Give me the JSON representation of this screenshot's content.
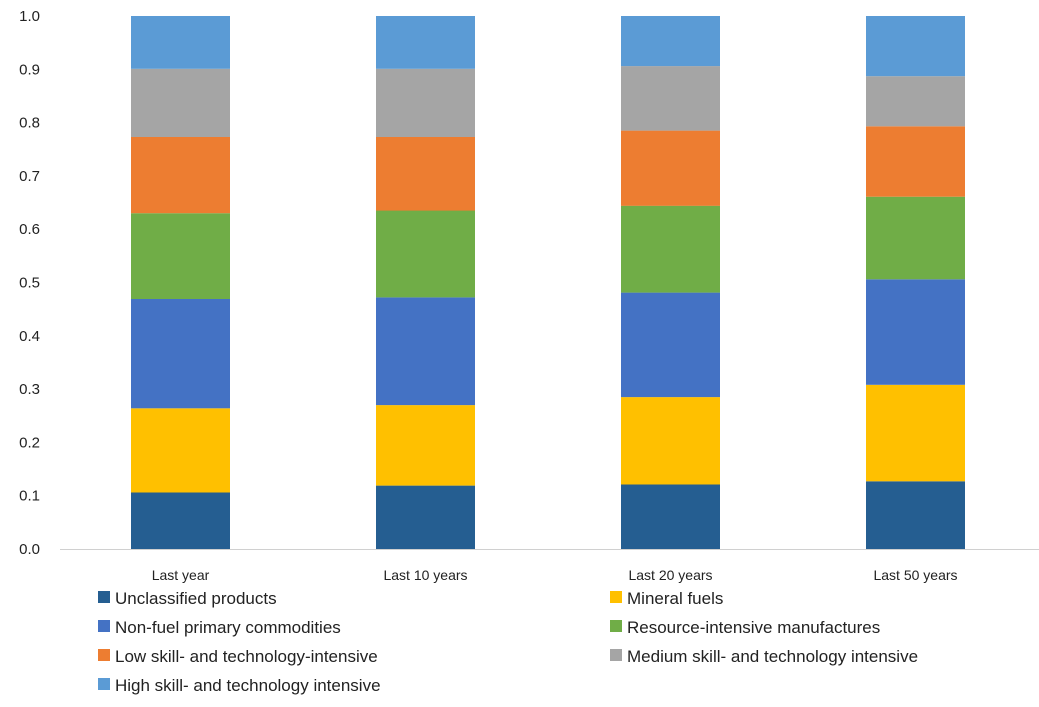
{
  "chart_data": {
    "type": "bar",
    "stacked": true,
    "title": "",
    "xlabel": "",
    "ylabel": "",
    "categories": [
      "Last year",
      "Last 10 years",
      "Last 20 years",
      "Last 50 years"
    ],
    "ylim": [
      0,
      1.0
    ],
    "yticks": [
      "0.0",
      "0.1",
      "0.2",
      "0.3",
      "0.4",
      "0.5",
      "0.6",
      "0.7",
      "0.8",
      "0.9",
      "1.0"
    ],
    "grid": false,
    "legend_position": "bottom",
    "series": [
      {
        "name": "Unclassified products",
        "color": "#255e91",
        "values": [
          0.106,
          0.119,
          0.121,
          0.127
        ]
      },
      {
        "name": "Mineral fuels",
        "color": "#ffc000",
        "values": [
          0.158,
          0.151,
          0.164,
          0.181
        ]
      },
      {
        "name": "Non-fuel primary commodities",
        "color": "#4472c4",
        "values": [
          0.205,
          0.202,
          0.196,
          0.198
        ]
      },
      {
        "name": "Resource-intensive manufactures",
        "color": "#70ad47",
        "values": [
          0.161,
          0.163,
          0.163,
          0.155
        ]
      },
      {
        "name": "Low skill- and technology-intensive",
        "color": "#ed7d31",
        "values": [
          0.143,
          0.138,
          0.141,
          0.132
        ]
      },
      {
        "name": "Medium skill- and technology intensive",
        "color": "#a5a5a5",
        "values": [
          0.128,
          0.128,
          0.121,
          0.094
        ]
      },
      {
        "name": "High skill- and technology intensive",
        "color": "#5b9bd5",
        "values": [
          0.099,
          0.099,
          0.094,
          0.113
        ]
      }
    ]
  }
}
